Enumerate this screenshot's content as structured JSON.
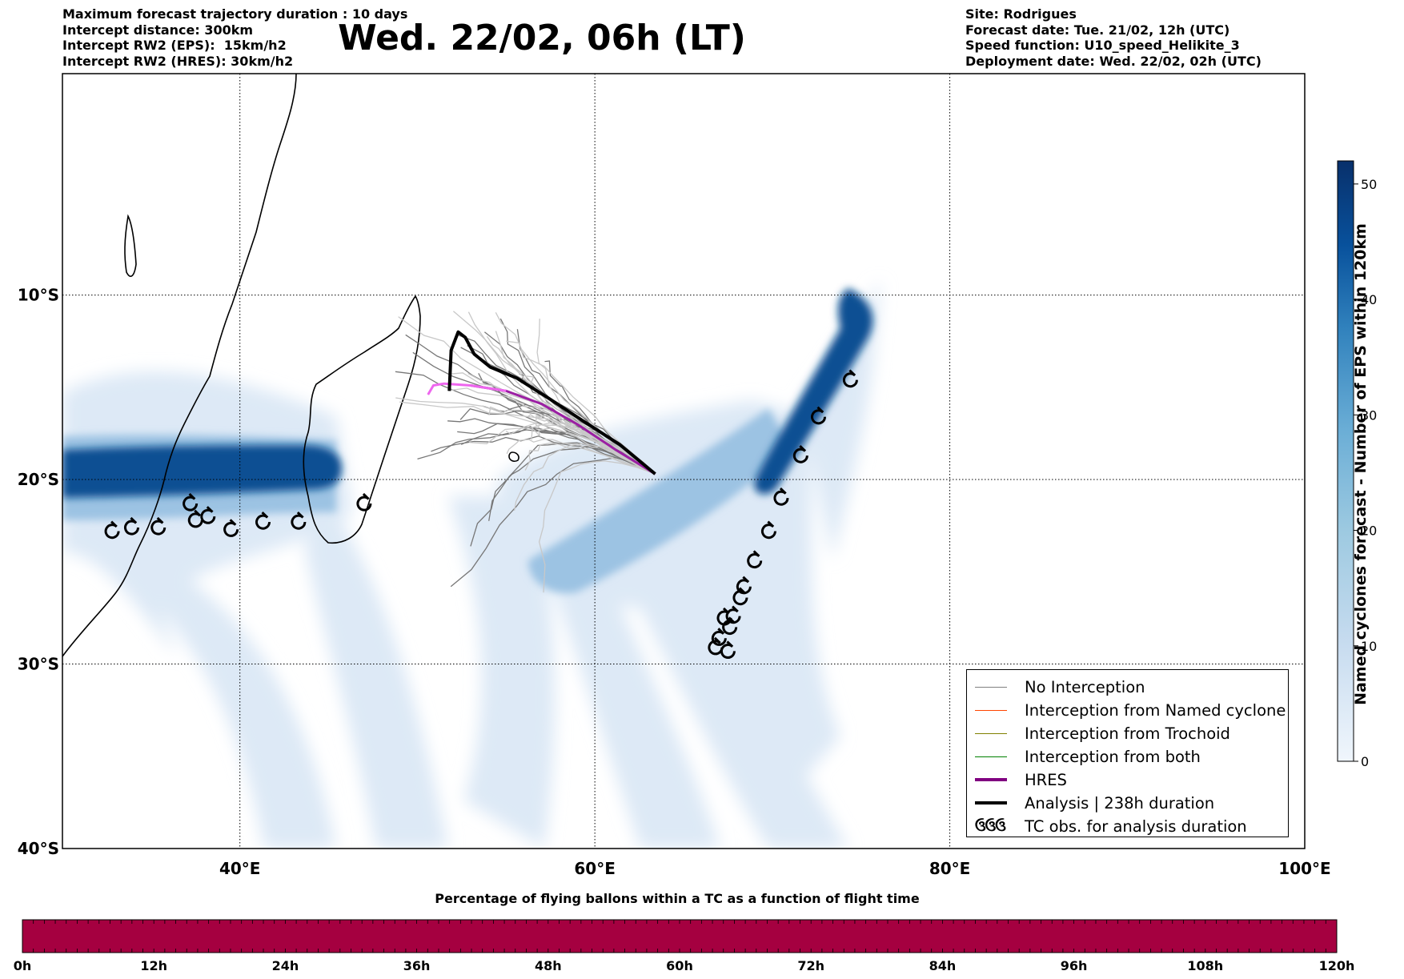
{
  "header": {
    "title": "Wed. 22/02, 06h (LT)",
    "left_info": [
      "Maximum forecast trajectory duration : 10 days",
      "Intercept distance: 300km",
      "Intercept RW2 (EPS):  15km/h2",
      "Intercept RW2 (HRES): 30km/h2"
    ],
    "right_info": [
      "Site: Rodrigues",
      "Forecast date: Tue. 21/02, 12h (UTC)",
      "Speed function: U10_speed_Helikite_3",
      "Deployment date: Wed. 22/02, 02h (UTC)"
    ]
  },
  "map": {
    "lon_range": [
      30,
      100
    ],
    "lat_range": [
      -40,
      2
    ],
    "lon_ticks": [
      {
        "value": 40,
        "label": "40°E"
      },
      {
        "value": 60,
        "label": "60°E"
      },
      {
        "value": 80,
        "label": "80°E"
      },
      {
        "value": 100,
        "label": "100°E"
      }
    ],
    "lat_ticks": [
      {
        "value": -10,
        "label": "10°S"
      },
      {
        "value": -20,
        "label": "20°S"
      },
      {
        "value": -30,
        "label": "30°S"
      },
      {
        "value": -40,
        "label": "40°S"
      }
    ],
    "grid": "dotted"
  },
  "legend": {
    "entries": [
      {
        "label": "No Interception",
        "color": "#808080",
        "style": "line"
      },
      {
        "label": "Interception from Named cyclone",
        "color": "#ff4500",
        "style": "line"
      },
      {
        "label": "Interception from Trochoid",
        "color": "#808000",
        "style": "line"
      },
      {
        "label": "Interception from both",
        "color": "#008000",
        "style": "line"
      },
      {
        "label": "HRES",
        "color": "#800080",
        "style": "thick"
      },
      {
        "label": "Analysis | 238h duration",
        "color": "#000000",
        "style": "thick"
      },
      {
        "label": "TC obs. for analysis duration",
        "color": "#000000",
        "style": "symbol"
      }
    ]
  },
  "colorbar": {
    "label": "Named cyclones forecast - Number of EPS within 120km",
    "min": 0,
    "max": 52,
    "ticks": [
      0,
      10,
      20,
      30,
      40,
      50
    ],
    "colors": [
      "#f0f6fc",
      "#c6dbef",
      "#9ecae1",
      "#6baed6",
      "#3182bd",
      "#08519c",
      "#08306b"
    ]
  },
  "bottom_bar": {
    "title": "Percentage of flying ballons within a TC as a function of flight time",
    "ticks": [
      "0h",
      "12h",
      "24h",
      "36h",
      "48h",
      "60h",
      "72h",
      "84h",
      "96h",
      "108h",
      "120h"
    ],
    "fill_color": "#a50040",
    "fill_fraction": 1.0
  },
  "tracks": {
    "site": {
      "lon": 63.4,
      "lat": -19.7
    },
    "analysis": [
      [
        51.8,
        -15.2
      ],
      [
        51.9,
        -13.0
      ],
      [
        52.3,
        -12.0
      ],
      [
        52.7,
        -12.3
      ],
      [
        53.2,
        -13.2
      ],
      [
        54.1,
        -13.9
      ],
      [
        55.6,
        -14.5
      ],
      [
        57.4,
        -15.6
      ],
      [
        59.3,
        -16.8
      ],
      [
        61.4,
        -18.1
      ],
      [
        63.4,
        -19.7
      ]
    ],
    "hres": [
      [
        50.6,
        -15.4
      ],
      [
        50.9,
        -14.9
      ],
      [
        51.5,
        -14.8
      ],
      [
        53.0,
        -14.9
      ],
      [
        55.0,
        -15.2
      ],
      [
        57.0,
        -15.9
      ],
      [
        59.0,
        -17.0
      ],
      [
        61.2,
        -18.4
      ],
      [
        63.4,
        -19.7
      ]
    ],
    "tc_obs_west": [
      [
        32.8,
        -22.8
      ],
      [
        33.9,
        -22.6
      ],
      [
        35.4,
        -22.6
      ],
      [
        37.2,
        -21.3
      ],
      [
        37.5,
        -22.2
      ],
      [
        38.2,
        -22.0
      ],
      [
        39.5,
        -22.7
      ],
      [
        41.3,
        -22.3
      ],
      [
        43.3,
        -22.3
      ],
      [
        47.0,
        -21.3
      ]
    ],
    "tc_obs_east": [
      [
        74.4,
        -14.6
      ],
      [
        72.6,
        -16.6
      ],
      [
        71.6,
        -18.7
      ],
      [
        70.5,
        -21.0
      ],
      [
        69.8,
        -22.8
      ],
      [
        69.0,
        -24.4
      ],
      [
        68.4,
        -25.8
      ],
      [
        68.2,
        -26.4
      ],
      [
        67.8,
        -27.4
      ],
      [
        67.6,
        -28.0
      ],
      [
        67.3,
        -27.5
      ],
      [
        67.0,
        -28.6
      ],
      [
        66.8,
        -29.1
      ],
      [
        67.5,
        -29.3
      ]
    ]
  }
}
